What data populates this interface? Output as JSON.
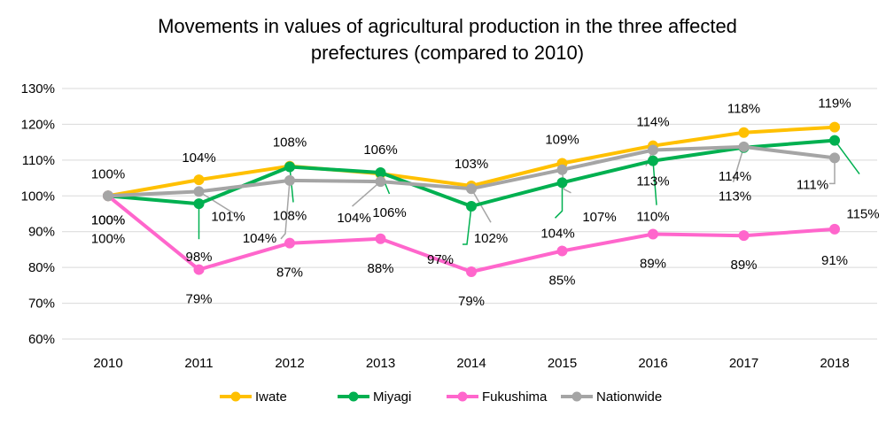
{
  "chart_data": {
    "type": "line",
    "title_line1": "Movements in values of agricultural production in the three affected",
    "title_line2": "prefectures (compared to 2010)",
    "categories": [
      "2010",
      "2011",
      "2012",
      "2013",
      "2014",
      "2015",
      "2016",
      "2017",
      "2018"
    ],
    "y_ticks": [
      "60%",
      "70%",
      "80%",
      "90%",
      "100%",
      "110%",
      "120%",
      "130%"
    ],
    "ylim": [
      60,
      130
    ],
    "grid": true,
    "legend_position": "bottom",
    "series": [
      {
        "name": "Iwate",
        "color": "#FFC000",
        "values": [
          100,
          104.5,
          108.3,
          106.2,
          102.8,
          109.1,
          114.0,
          117.7,
          119.2
        ],
        "labels": [
          "100%",
          "104%",
          "108%",
          "106%",
          "103%",
          "109%",
          "114%",
          "118%",
          "119%"
        ]
      },
      {
        "name": "Miyagi",
        "color": "#00B050",
        "values": [
          100,
          97.8,
          108.1,
          106.5,
          97.1,
          103.7,
          109.8,
          113.5,
          115.5
        ],
        "labels": [
          "100%",
          "98%",
          "108%",
          "106%",
          "97%",
          "104%",
          "110%",
          "113%",
          "115%"
        ]
      },
      {
        "name": "Fukushima",
        "color": "#FF66CC",
        "values": [
          100,
          79.4,
          86.8,
          88.0,
          78.8,
          84.6,
          89.3,
          88.9,
          90.7
        ],
        "labels": [
          "100%",
          "79%",
          "87%",
          "88%",
          "79%",
          "85%",
          "89%",
          "89%",
          "91%"
        ]
      },
      {
        "name": "Nationwide",
        "color": "#A5A5A5",
        "values": [
          100,
          101.2,
          104.3,
          104.0,
          102.0,
          107.3,
          112.8,
          113.7,
          110.6
        ],
        "labels": [
          "100%",
          "101%",
          "104%",
          "104%",
          "102%",
          "107%",
          "113%",
          "114%",
          "111%"
        ]
      }
    ]
  }
}
